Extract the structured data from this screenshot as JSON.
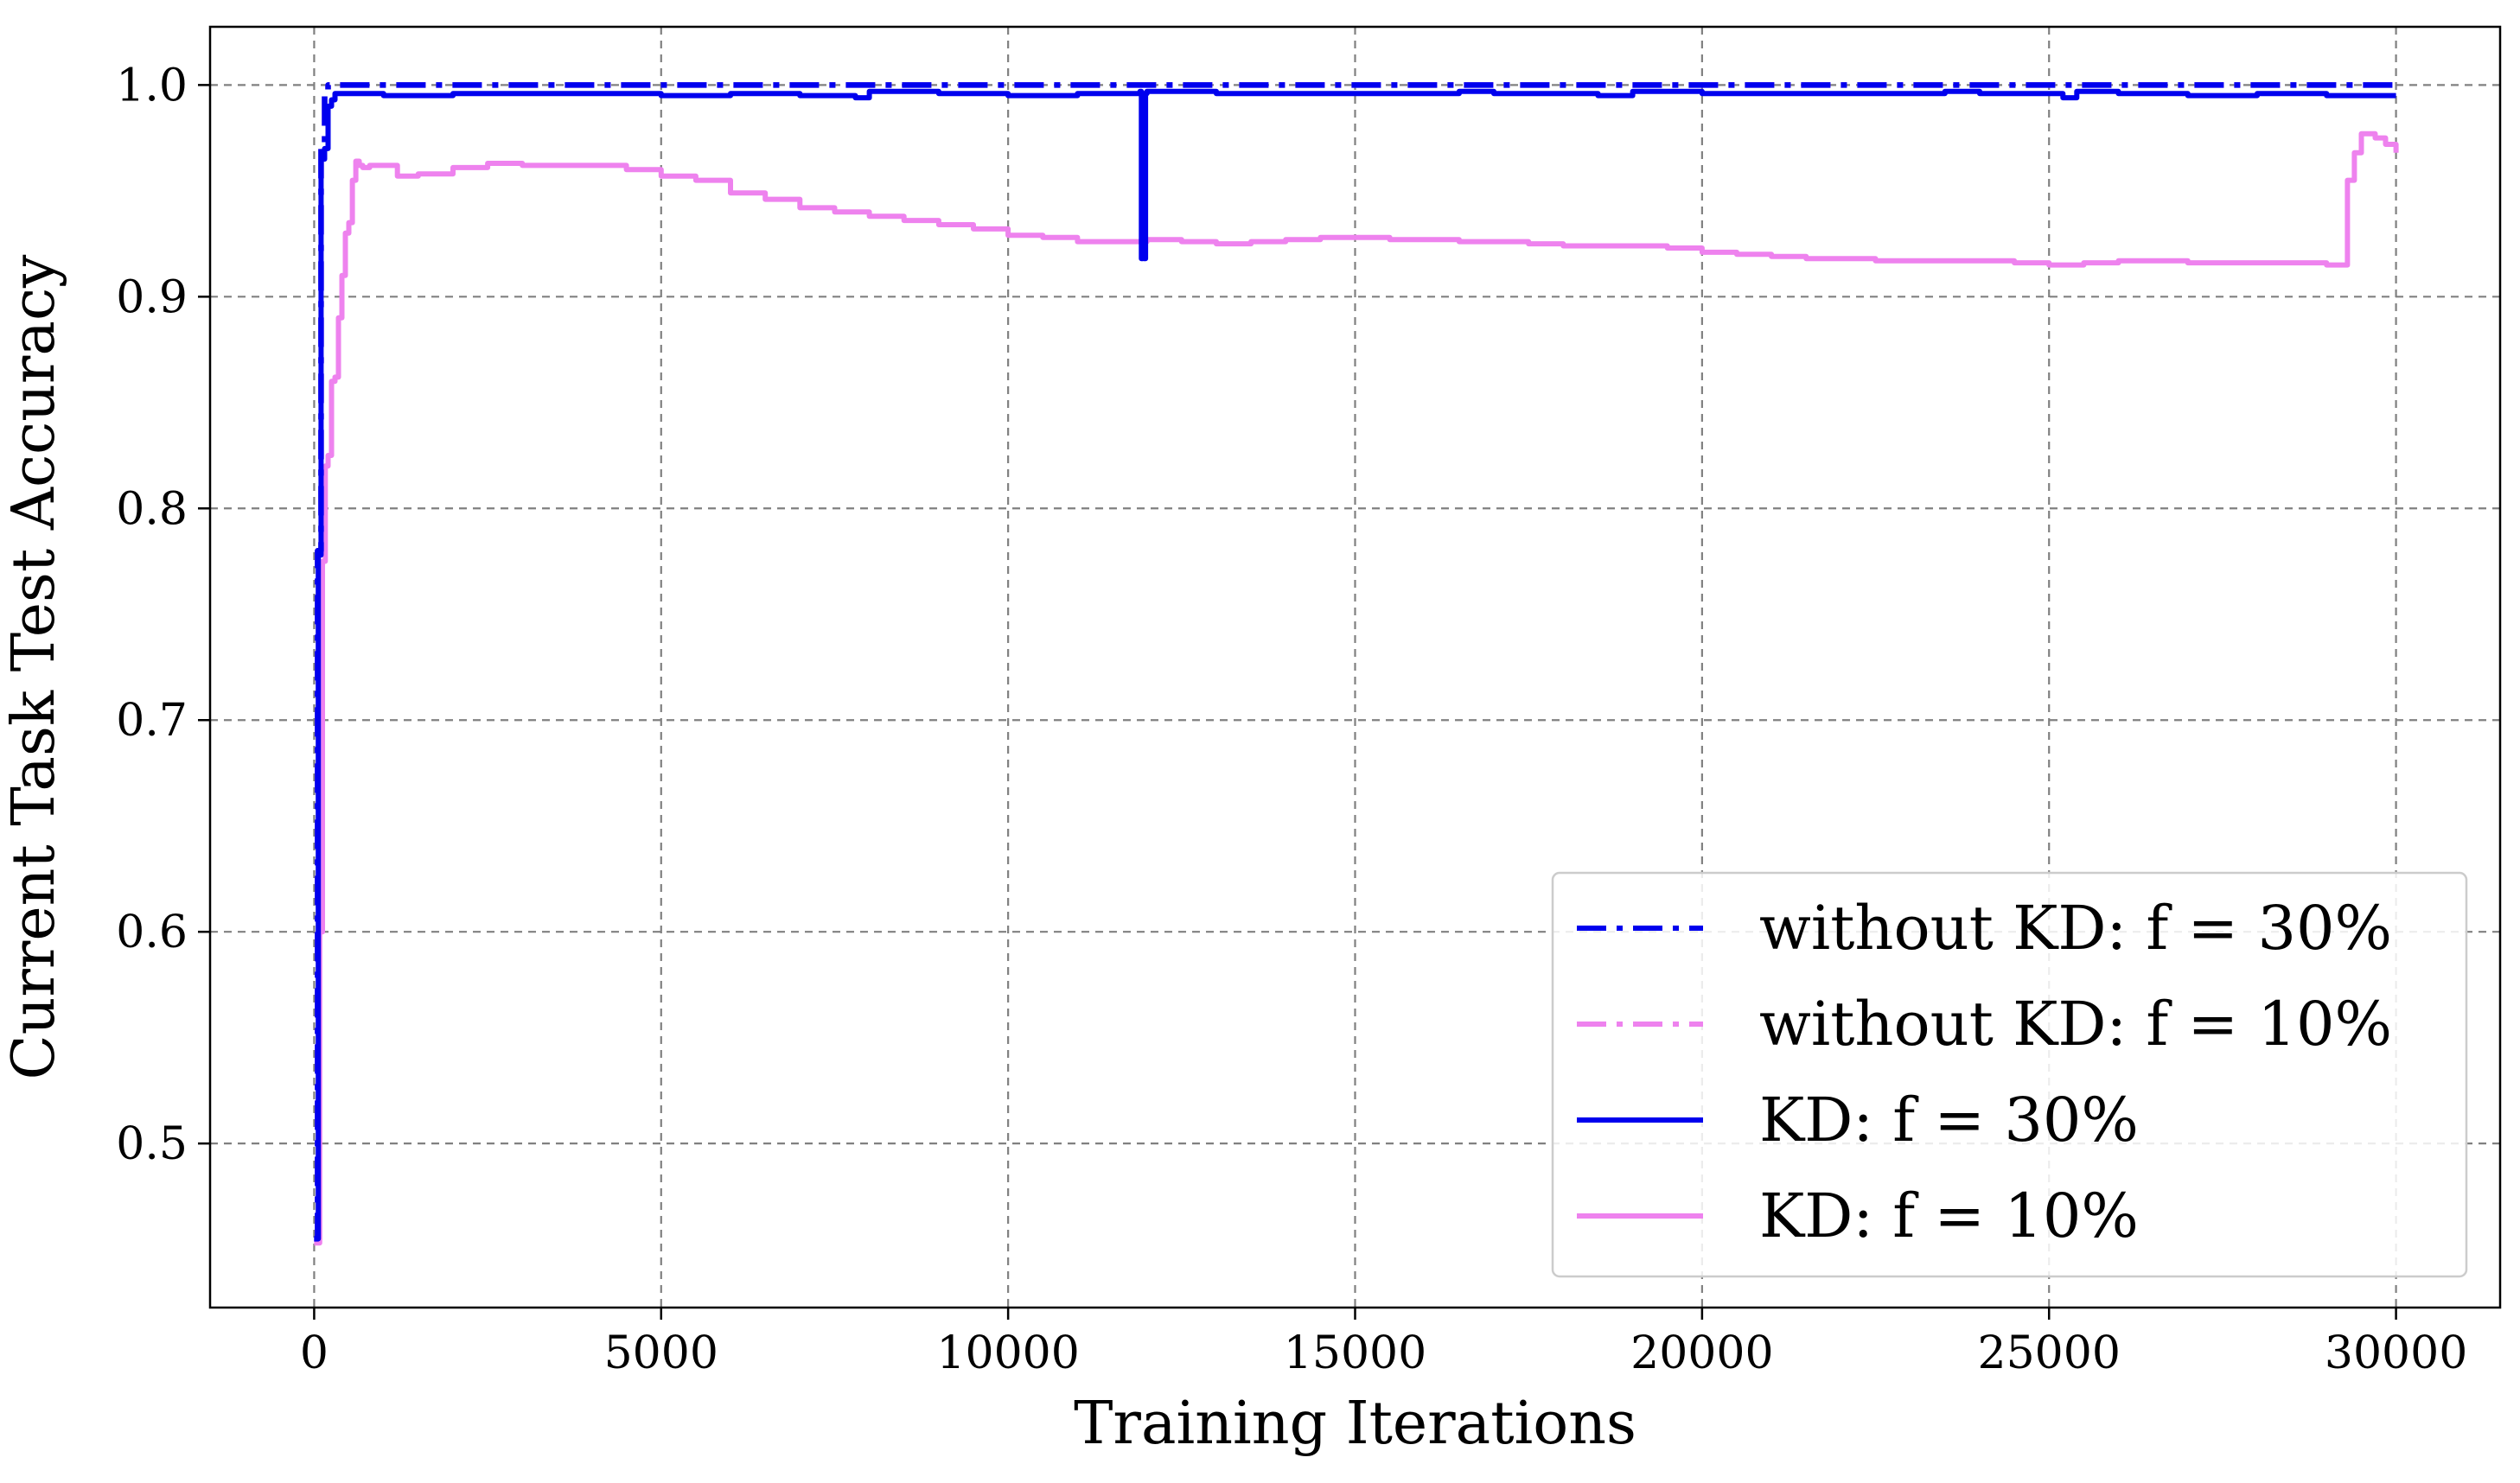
{
  "chart_data": {
    "type": "line",
    "title": "",
    "xlabel": "Training Iterations",
    "ylabel": "Current Task Test Accuracy",
    "xlim": [
      -1500,
      31500
    ],
    "ylim": [
      0.4225,
      1.0275
    ],
    "xticks": [
      0,
      5000,
      10000,
      15000,
      20000,
      25000,
      30000
    ],
    "yticks": [
      0.5,
      0.6,
      0.7,
      0.8,
      0.9,
      1.0
    ],
    "xtick_labels": [
      "0",
      "5000",
      "10000",
      "15000",
      "20000",
      "25000",
      "30000"
    ],
    "ytick_labels": [
      "0.5",
      "0.6",
      "0.7",
      "0.8",
      "0.9",
      "1.0"
    ],
    "grid": true,
    "legend_position": "lower-right",
    "series": [
      {
        "name": "without KD: f = 30%",
        "color": "#0000ee",
        "style": "dashdot",
        "x": [
          0,
          50,
          100,
          150,
          200,
          300,
          500,
          1000,
          30000
        ],
        "y": [
          0.455,
          0.78,
          0.97,
          0.995,
          1.0,
          1.0,
          1.0,
          1.0,
          1.0
        ]
      },
      {
        "name": "without KD: f = 10%",
        "color": "#ee82ee",
        "style": "dashdot",
        "x": [
          0,
          50,
          100,
          150,
          200,
          300,
          500,
          1000,
          30000
        ],
        "y": [
          0.455,
          0.78,
          0.97,
          0.995,
          1.0,
          1.0,
          1.0,
          1.0,
          1.0
        ]
      },
      {
        "name": "KD: f = 30%",
        "color": "#0000ee",
        "style": "solid",
        "x": [
          0,
          60,
          100,
          150,
          200,
          250,
          300,
          500,
          1000,
          2000,
          3000,
          4000,
          5000,
          6000,
          7000,
          7800,
          8000,
          9000,
          10000,
          11000,
          11500,
          11900,
          11920,
          11940,
          11960,
          11980,
          12000,
          12100,
          13000,
          14000,
          15000,
          16000,
          16500,
          17000,
          18000,
          18500,
          19000,
          20000,
          21000,
          22000,
          23000,
          23500,
          24000,
          25000,
          25200,
          25400,
          26000,
          27000,
          28000,
          29000,
          30000
        ],
        "y": [
          0.455,
          0.778,
          0.965,
          0.97,
          0.99,
          0.993,
          0.996,
          0.996,
          0.995,
          0.996,
          0.996,
          0.996,
          0.995,
          0.996,
          0.995,
          0.994,
          0.997,
          0.996,
          0.995,
          0.996,
          0.996,
          0.997,
          0.918,
          0.996,
          0.918,
          0.996,
          0.997,
          0.997,
          0.996,
          0.996,
          0.996,
          0.996,
          0.997,
          0.996,
          0.996,
          0.995,
          0.997,
          0.996,
          0.996,
          0.996,
          0.996,
          0.997,
          0.996,
          0.996,
          0.994,
          0.997,
          0.996,
          0.995,
          0.996,
          0.995,
          0.995
        ]
      },
      {
        "name": "KD: f = 10%",
        "color": "#ee82ee",
        "style": "solid",
        "x": [
          0,
          80,
          120,
          160,
          200,
          250,
          300,
          350,
          400,
          450,
          500,
          550,
          600,
          650,
          700,
          800,
          1000,
          1200,
          1500,
          2000,
          2500,
          3000,
          3500,
          4000,
          4500,
          5000,
          5500,
          6000,
          6500,
          7000,
          7500,
          8000,
          8500,
          9000,
          9500,
          10000,
          10500,
          11000,
          11500,
          12000,
          12500,
          13000,
          13500,
          14000,
          14500,
          15000,
          15500,
          16000,
          16500,
          17000,
          17500,
          18000,
          18500,
          19000,
          19500,
          20000,
          20500,
          21000,
          21500,
          22000,
          22500,
          23000,
          23500,
          24000,
          24500,
          25000,
          25500,
          26000,
          26500,
          27000,
          27500,
          28000,
          28500,
          29000,
          29200,
          29300,
          29400,
          29500,
          29700,
          29850,
          30000
        ],
        "y": [
          0.453,
          0.6,
          0.775,
          0.82,
          0.825,
          0.86,
          0.862,
          0.89,
          0.91,
          0.93,
          0.935,
          0.955,
          0.964,
          0.962,
          0.961,
          0.962,
          0.962,
          0.957,
          0.958,
          0.961,
          0.963,
          0.962,
          0.962,
          0.962,
          0.96,
          0.957,
          0.955,
          0.949,
          0.946,
          0.942,
          0.94,
          0.938,
          0.936,
          0.934,
          0.932,
          0.929,
          0.928,
          0.926,
          0.926,
          0.927,
          0.926,
          0.925,
          0.926,
          0.927,
          0.928,
          0.928,
          0.927,
          0.927,
          0.926,
          0.926,
          0.925,
          0.924,
          0.924,
          0.924,
          0.923,
          0.921,
          0.92,
          0.919,
          0.918,
          0.918,
          0.917,
          0.917,
          0.917,
          0.917,
          0.916,
          0.915,
          0.916,
          0.917,
          0.917,
          0.916,
          0.916,
          0.916,
          0.916,
          0.915,
          0.915,
          0.955,
          0.968,
          0.977,
          0.975,
          0.972,
          0.968
        ]
      }
    ]
  }
}
